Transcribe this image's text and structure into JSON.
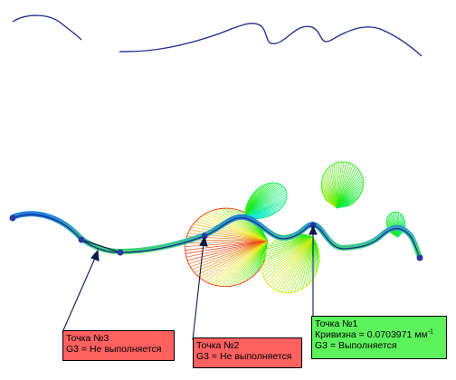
{
  "colors": {
    "curve_top": "#1a2a8c",
    "leader": "#0b1a4a",
    "point": "#2a3aa0",
    "callout_fail": "#ff6060",
    "callout_ok": "#5cf25c"
  },
  "callouts": [
    {
      "title": "Точка №1",
      "lines": [
        "Кривизна = 0.0703971 мм",
        "G3 = Выполняется"
      ],
      "curvature_unit_sup": "-1",
      "status": "ok"
    },
    {
      "title": "Точка №2",
      "lines": [
        "G3 = Не выполняется"
      ],
      "status": "fail"
    },
    {
      "title": "Точка №3",
      "lines": [
        "G3 = Не выполняется"
      ],
      "status": "fail"
    }
  ]
}
